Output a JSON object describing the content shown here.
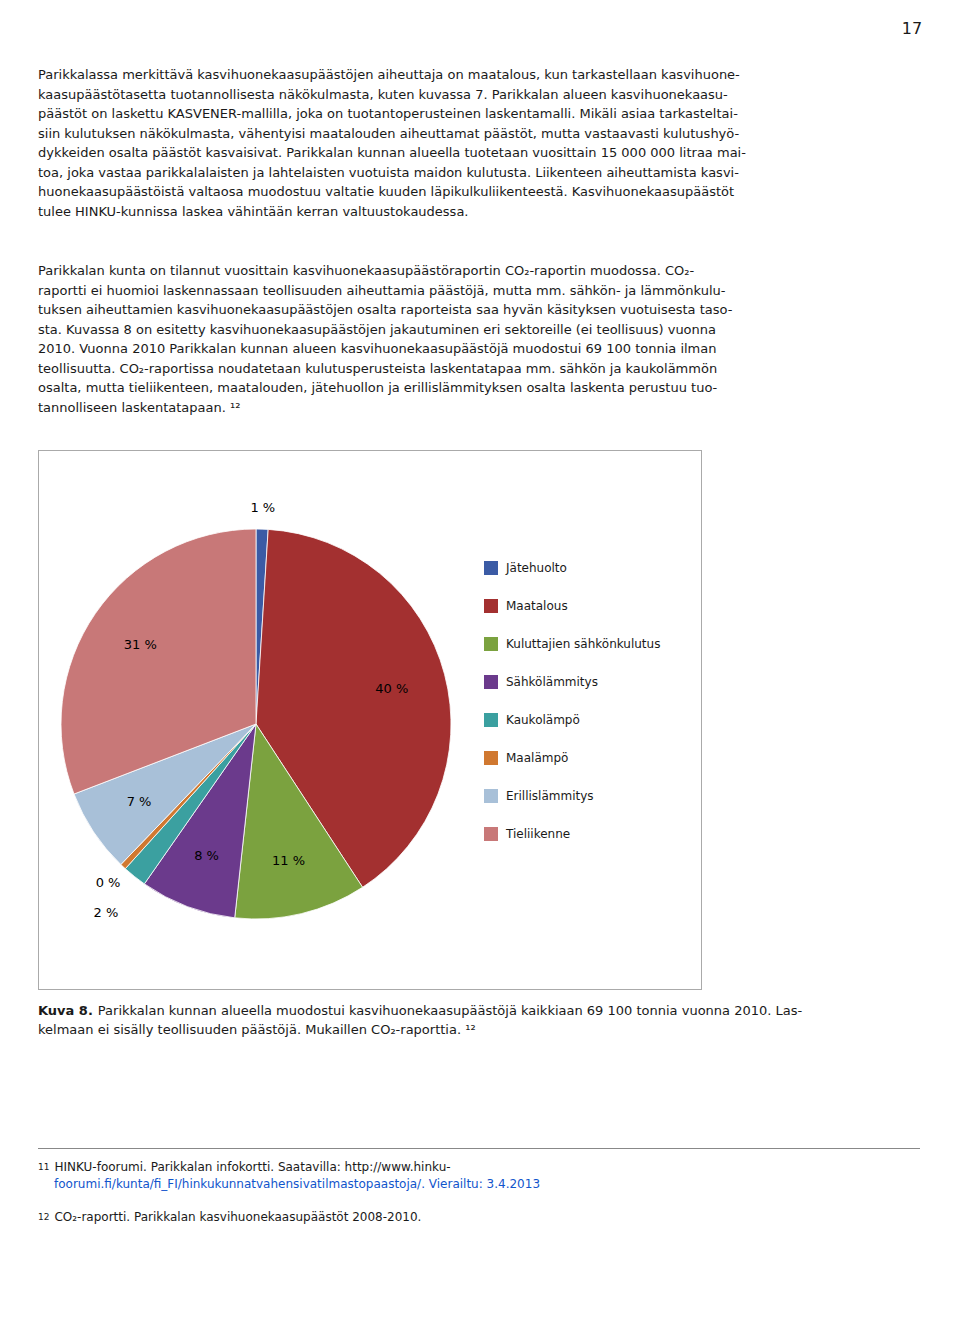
{
  "chart_data": {
    "type": "pie",
    "categories": [
      "Jätehuolto",
      "Maatalous",
      "Kuluttajien sähkönkulutus",
      "Sähkölämmitys",
      "Kaukolämpö",
      "Maalämpö",
      "Erillislämmitys",
      "Tieliikenne"
    ],
    "values": [
      1,
      40,
      11,
      8,
      2,
      0.5,
      7,
      31
    ],
    "value_labels": [
      "1 %",
      "40 %",
      "11 %",
      "8 %",
      "2 %",
      "0 %",
      "7 %",
      "31 %"
    ],
    "colors": [
      "#3B5BA5",
      "#A33030",
      "#7BA23F",
      "#6B3A8C",
      "#3BA0A0",
      "#D07830",
      "#A8C0D8",
      "#C87878"
    ],
    "data_labels": true,
    "legend": "right",
    "annotations": [
      "17",
      "Parikkalassa merkittävä kasvihuonekaasupäästöjen aiheuttaja on maatalous, kun tarkastellaan kasvihuone-",
      "kaasupäästötasetta tuotannollisesta näkökulmasta, kuten kuvassa 7. Parikkalan alueen kasvihuonekaasu-",
      "päästöt on laskettu KASVENER-mallilla, joka on tuotantoperusteinen laskentamalli. Mikäli asiaa tarkasteltai-",
      "siin kulutuksen näkökulmasta, vähentyisi maatalouden aiheuttamat päästöt, mutta vastaavasti kulutushyö-",
      "dykkeiden osalta päästöt kasvaisivat. Parikkalan kunnan alueella tuotetaan vuosittain 15 000 000 litraa mai-",
      "toa, joka vastaa parikkalalaisten ja lahtelaisten vuotuista maidon kulutusta. Liikenteen aiheuttamista kasvi-",
      "huonekaasupäästöistä valtaosa muodostuu valtatie kuuden läpikulkuliikenteestä. Kasvihuonekaasupäästöt",
      "tulee HINKU-kunnissa laskea vähintään kerran valtuustokaudessa.",
      "Parikkalan kunta on tilannut vuosittain kasvihuonekaasupäästöraportin CO₂-raportin muodossa. CO₂-",
      "raportti ei huomioi laskennassaan teollisuuden aiheuttamia päästöjä, mutta mm. sähkön- ja lämmönkulu-",
      "tuksen aiheuttamien kasvihuonekaasupäästöjen osalta raporteista saa hyvän käsityksen vuotuisesta taso-",
      "sta. Kuvassa 8 on esitetty kasvihuonekaasupäästöjen jakautuminen eri sektoreille (ei teollisuus) vuonna",
      "2010. Vuonna 2010 Parikkalan kunnan alueen kasvihuonekaasupäästöjä muodostui 69 100 tonnia ilman",
      "teollisuutta. CO₂-raportissa noudatetaan kulutusperusteista laskentatapaa mm. sähkön ja kaukolämmön",
      "osalta, mutta tieliikenteen, maatalouden, jätehuollon ja erillislämmityksen osalta laskenta perustuu tuo-",
      "tannolliseen laskentatapaan. ¹²",
      "Kuva 8.",
      "Parikkalan kunnan alueella muodostui kasvihuonekaasupäästöjä kaikkiaan 69 100 tonnia vuonna 2010. Las-",
      "kelmaan ei sisälly teollisuuden päästöjä. Mukaillen CO₂-raporttia. ¹²",
      "11",
      "HINKU-foorumi. Parikkalan infokortti. Saatavilla: http://www.hinku-",
      "foorumi.fi/kunta/fi_FI/hinkukunnatvahensivatilmastopaastoja/. Vierailtu: 3.4.2013",
      "12",
      "CO₂-raportti. Parikkalan kasvihuonekaasupäästöt 2008-2010."
    ]
  }
}
